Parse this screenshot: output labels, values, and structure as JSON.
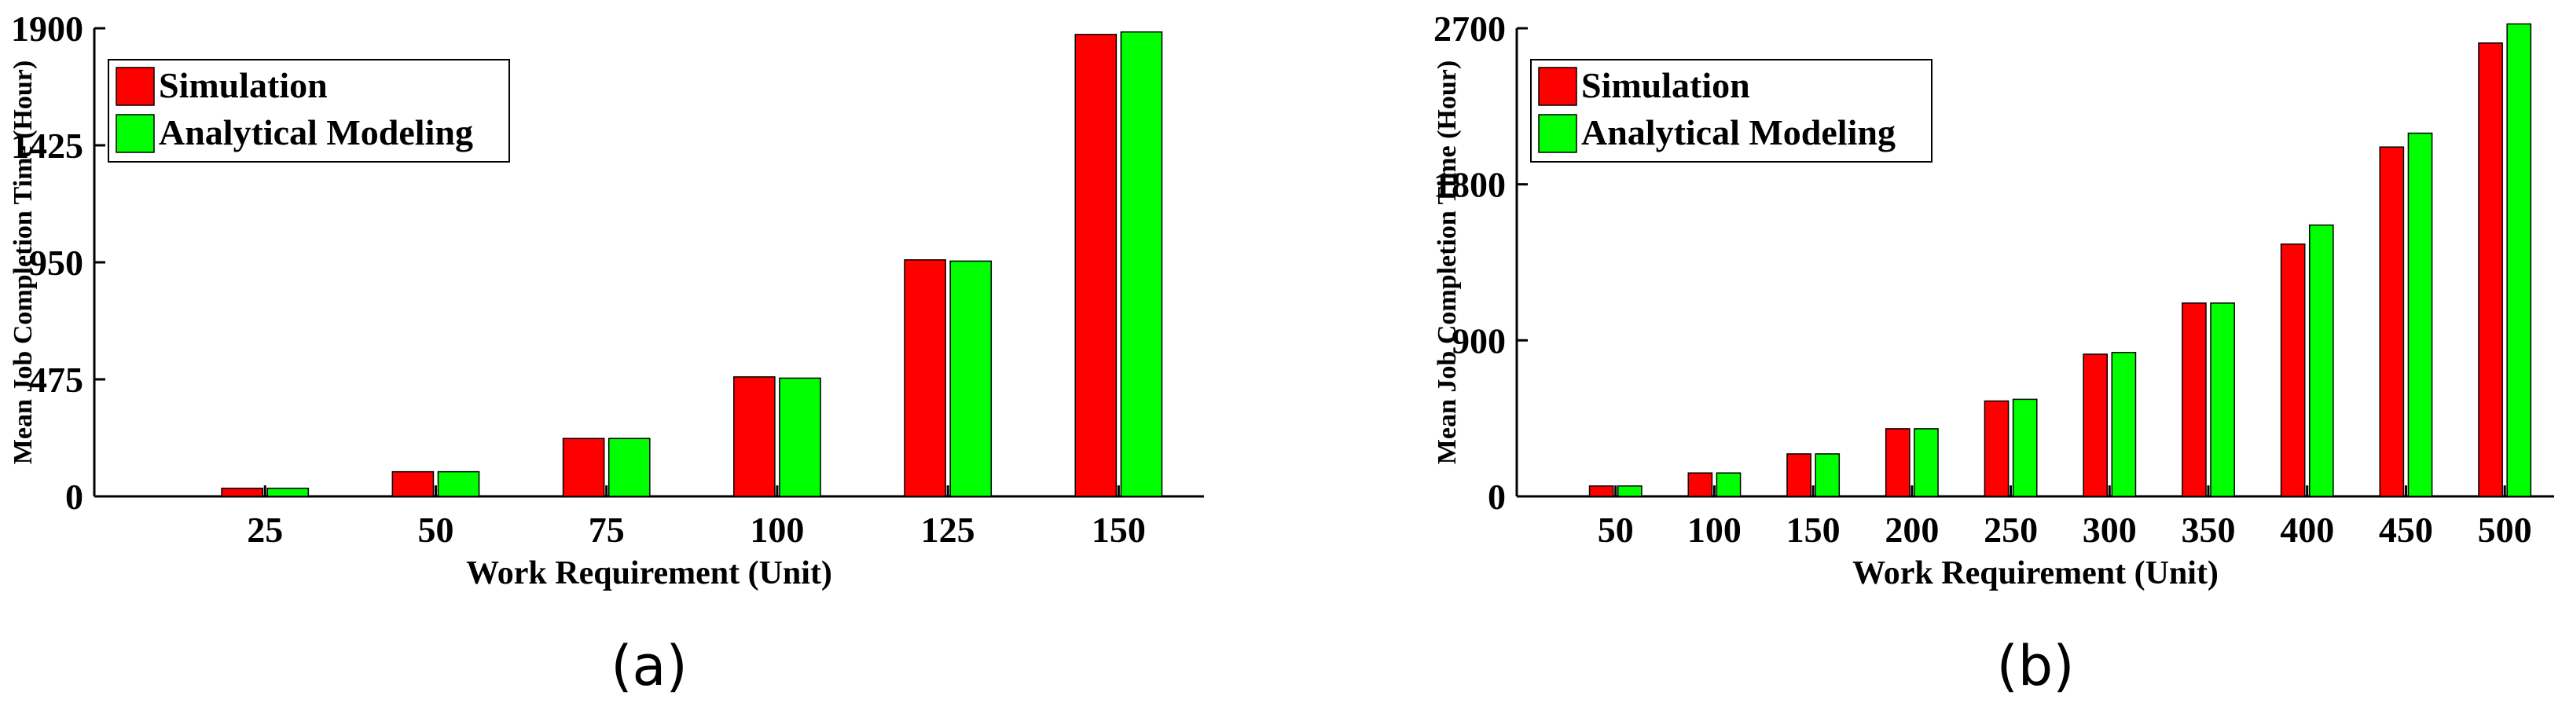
{
  "colors": {
    "simulation": "#ff0000",
    "analytical": "#00ff00",
    "axis": "#000000"
  },
  "chart_data": [
    {
      "type": "bar",
      "panel_label": "(a)",
      "xlabel": "Work Requirement (Unit)",
      "ylabel": "Mean Job Completion Time (Hour)",
      "categories": [
        "25",
        "50",
        "75",
        "100",
        "125",
        "150"
      ],
      "yticks": [
        "0",
        "475",
        "950",
        "1425",
        "1900"
      ],
      "ylim": [
        0,
        1900
      ],
      "legend_position": "top-left",
      "grid": false,
      "series": [
        {
          "name": "Simulation",
          "color": "#ff0000",
          "values": [
            33,
            100,
            235,
            485,
            960,
            1875
          ]
        },
        {
          "name": "Analytical Modeling",
          "color": "#00ff00",
          "values": [
            33,
            100,
            235,
            480,
            955,
            1885
          ]
        }
      ]
    },
    {
      "type": "bar",
      "panel_label": "(b)",
      "xlabel": "Work Requirement (Unit)",
      "ylabel": "Mean Job Completion Time (Hour)",
      "categories": [
        "50",
        "100",
        "150",
        "200",
        "250",
        "300",
        "350",
        "400",
        "450",
        "500"
      ],
      "yticks": [
        "0",
        "900",
        "1800",
        "2700"
      ],
      "ylim": [
        0,
        2700
      ],
      "legend_position": "top-left",
      "grid": false,
      "series": [
        {
          "name": "Simulation",
          "color": "#ff0000",
          "values": [
            60,
            135,
            245,
            390,
            550,
            820,
            1115,
            1455,
            2015,
            2615
          ]
        },
        {
          "name": "Analytical Modeling",
          "color": "#00ff00",
          "values": [
            60,
            135,
            245,
            390,
            560,
            830,
            1115,
            1565,
            2095,
            2725
          ]
        }
      ]
    }
  ]
}
